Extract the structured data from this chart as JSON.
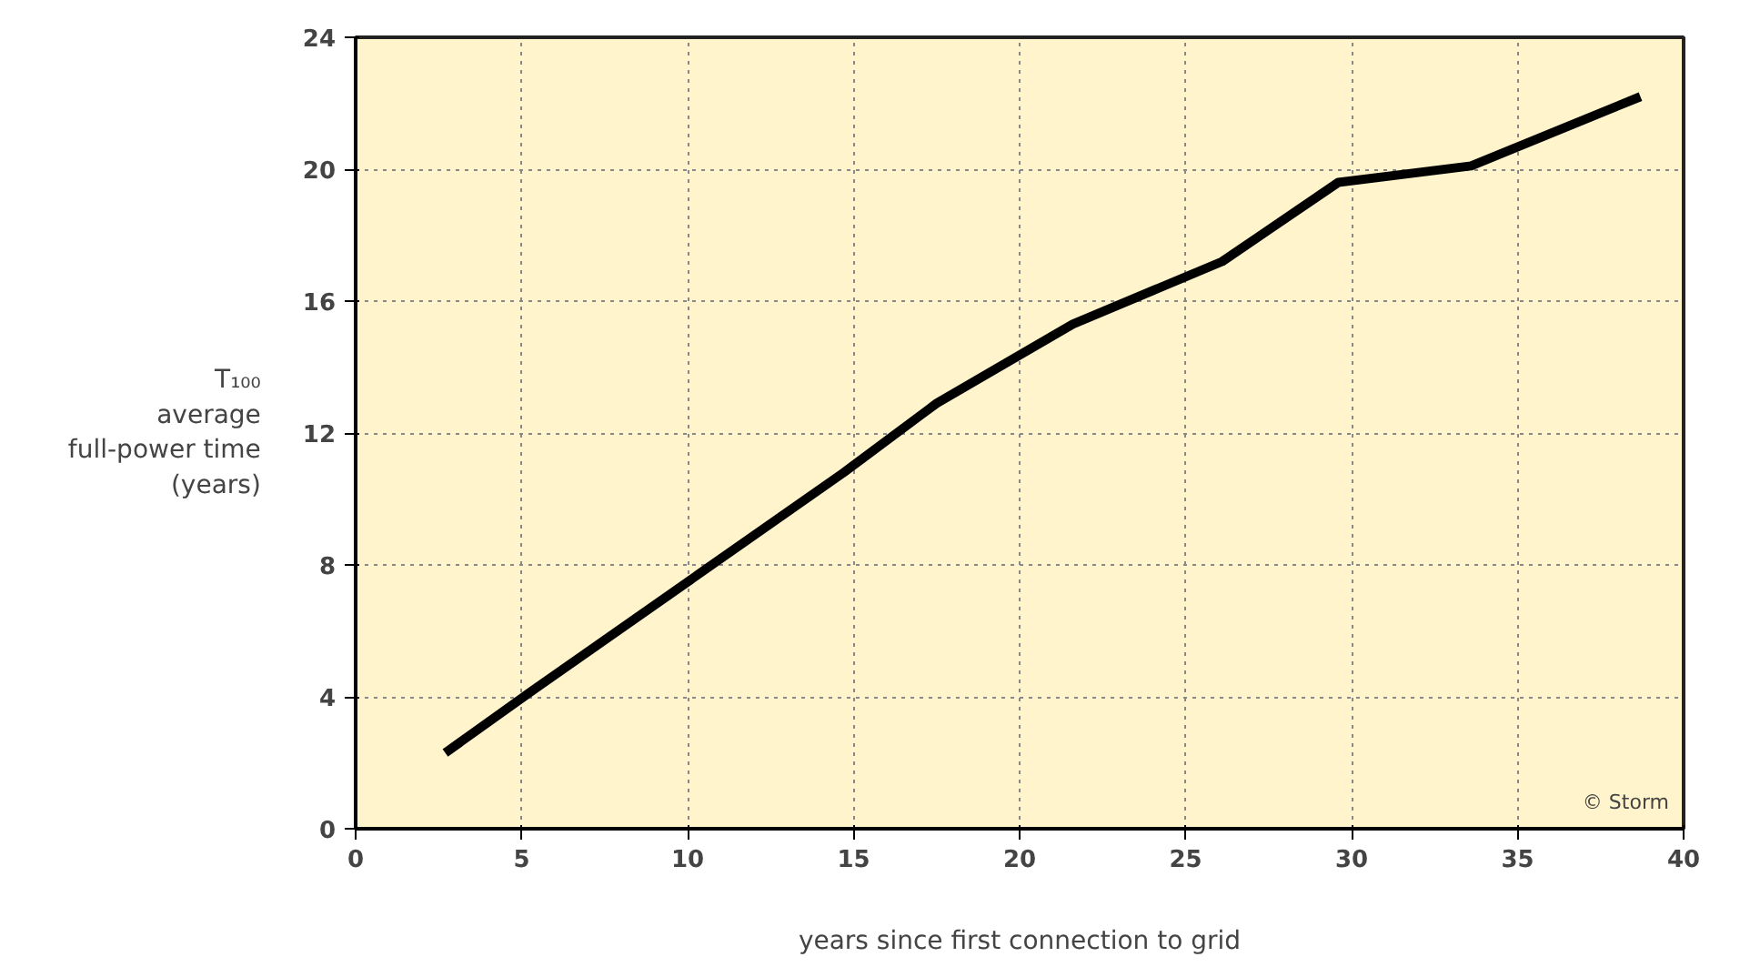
{
  "chart_data": {
    "type": "line",
    "xlabel": "years since first connection to grid",
    "ylabel": "T₁₀₀ average full-power time (years)",
    "x": [
      2.7,
      5.2,
      14.7,
      17.5,
      21.6,
      26.1,
      29.6,
      33.6,
      38.7
    ],
    "series": [
      {
        "color": "#000000",
        "values": [
          2.3,
          4.1,
          10.8,
          12.9,
          15.3,
          17.2,
          19.6,
          20.1,
          22.2
        ]
      }
    ],
    "xlim": [
      0,
      40
    ],
    "ylim": [
      0,
      24
    ],
    "xticks": [
      0,
      5,
      10,
      15,
      20,
      25,
      30,
      35,
      40
    ],
    "yticks": [
      0,
      4,
      8,
      12,
      16,
      20,
      24
    ],
    "grid": true,
    "marker": "none",
    "line_style": "solid",
    "annotations": [
      "© Storm"
    ]
  }
}
